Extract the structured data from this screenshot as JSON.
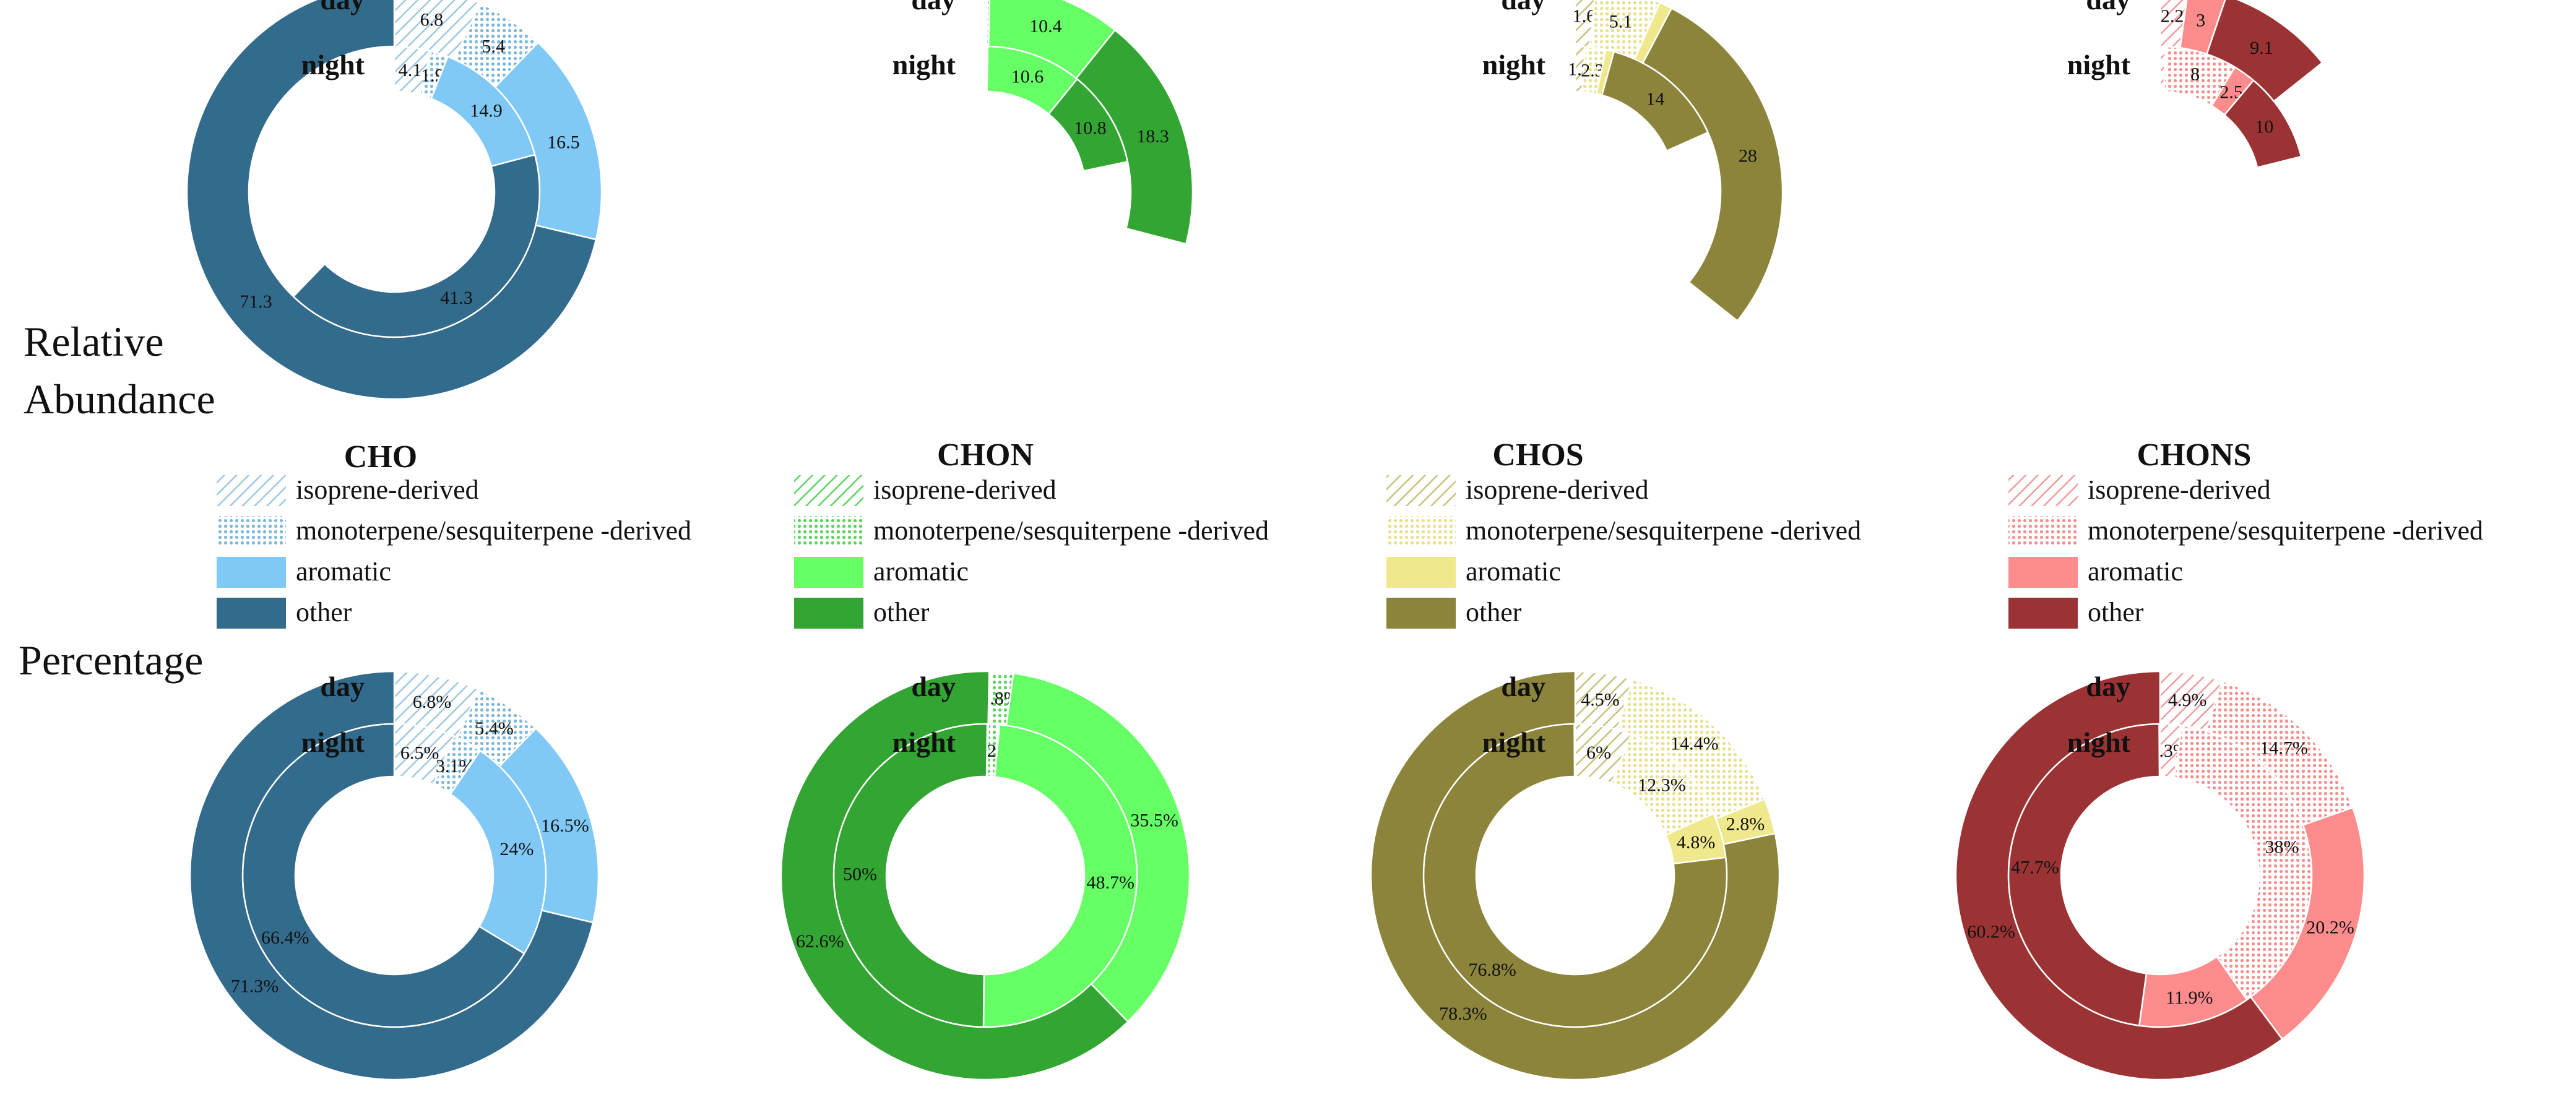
{
  "row_labels": {
    "relative_line1": "Relative",
    "relative_line2": "Abundance",
    "percentage": "Percentage"
  },
  "ring_labels": {
    "day": "day",
    "night": "night"
  },
  "legend_items": [
    "isoprene-derived",
    "monoterpene/sesquiterpene -derived",
    "aromatic",
    "other"
  ],
  "chart_data": [
    {
      "type": "pie",
      "subtype": "nested-donut",
      "metric": "Relative Abundance",
      "group": "CHO",
      "categories": [
        "isoprene-derived",
        "monoterpene/sesquiterpene -derived",
        "aromatic",
        "other"
      ],
      "series": [
        {
          "name": "day",
          "values": [
            6.8,
            5.4,
            16.5,
            71.3
          ],
          "labels": [
            "6.8",
            "5.4",
            "16.5",
            "71.3"
          ]
        },
        {
          "name": "night",
          "values": [
            4.1,
            1.9,
            14.9,
            41.3
          ],
          "labels": [
            "4.1",
            "1.9",
            "14.9",
            "41.3"
          ]
        }
      ],
      "colors": {
        "isoprene": "#9dc7e2",
        "mono": "#7db7db",
        "aromatic": "#80c8f5",
        "other": "#336b8c"
      }
    },
    {
      "type": "pie",
      "subtype": "nested-donut",
      "metric": "Relative Abundance",
      "group": "CHON",
      "categories": [
        "isoprene-derived",
        "monoterpene/sesquiterpene -derived",
        "aromatic",
        "other"
      ],
      "series": [
        {
          "name": "day",
          "values": [
            0.15,
            0.2,
            10.4,
            18.3
          ],
          "labels": [
            "",
            "",
            "10.4",
            "18.3"
          ]
        },
        {
          "name": "night",
          "values": [
            0.12,
            0.15,
            10.6,
            10.8
          ],
          "labels": [
            "",
            "",
            "10.6",
            "10.8"
          ]
        }
      ],
      "colors": {
        "isoprene": "#5ed35e",
        "mono": "#5ed35e",
        "aromatic": "#66ff66",
        "other": "#33a533"
      }
    },
    {
      "type": "pie",
      "subtype": "nested-donut",
      "metric": "Relative Abundance",
      "group": "CHOS",
      "categories": [
        "isoprene-derived",
        "monoterpene/sesquiterpene -derived",
        "aromatic",
        "other"
      ],
      "series": [
        {
          "name": "day",
          "values": [
            1.6,
            5.1,
            1.0,
            28
          ],
          "labels": [
            "1.6",
            "5.1",
            "",
            "28"
          ]
        },
        {
          "name": "night",
          "values": [
            1.1,
            2.3,
            0.9,
            14
          ],
          "labels": [
            "1.1",
            "2.3",
            "",
            "14"
          ]
        }
      ],
      "colors": {
        "isoprene": "#c9c07a",
        "mono": "#e8e08c",
        "aromatic": "#f0e88c",
        "other": "#8b843a"
      }
    },
    {
      "type": "pie",
      "subtype": "nested-donut",
      "metric": "Relative Abundance",
      "group": "CHONS",
      "categories": [
        "isoprene-derived",
        "monoterpene/sesquiterpene -derived",
        "aromatic",
        "other"
      ],
      "series": [
        {
          "name": "day",
          "values": [
            2.2,
            0,
            3,
            9.1
          ],
          "labels": [
            "2.2",
            "",
            "3",
            "9.1"
          ]
        },
        {
          "name": "night",
          "values": [
            0.6,
            8,
            2.5,
            10
          ],
          "labels": [
            "",
            "8",
            "2.5",
            "10"
          ]
        }
      ],
      "colors": {
        "isoprene": "#f09a9a",
        "mono": "#f49090",
        "aromatic": "#ff8c8c",
        "other": "#9b3335"
      }
    },
    {
      "type": "pie",
      "subtype": "nested-donut",
      "metric": "Percentage",
      "group": "CHO",
      "categories": [
        "isoprene-derived",
        "monoterpene/sesquiterpene -derived",
        "aromatic",
        "other"
      ],
      "series": [
        {
          "name": "day",
          "values": [
            6.8,
            5.4,
            16.5,
            71.3
          ],
          "labels": [
            "6.8%",
            "5.4%",
            "16.5%",
            "71.3%"
          ]
        },
        {
          "name": "night",
          "values": [
            6.5,
            3.1,
            24,
            66.4
          ],
          "labels": [
            "6.5%",
            "3.1%",
            "24%",
            "66.4%"
          ]
        }
      ],
      "colors": {
        "isoprene": "#9dc7e2",
        "mono": "#7db7db",
        "aromatic": "#80c8f5",
        "other": "#336b8c"
      }
    },
    {
      "type": "pie",
      "subtype": "nested-donut",
      "metric": "Percentage",
      "group": "CHON",
      "categories": [
        "isoprene-derived",
        "monoterpene/sesquiterpene -derived",
        "aromatic",
        "other"
      ],
      "series": [
        {
          "name": "day",
          "values": [
            0.4,
            1.8,
            35.5,
            62.6
          ],
          "labels": [
            "",
            "1.8%",
            "35.5%",
            "62.6%"
          ]
        },
        {
          "name": "night",
          "values": [
            0.3,
            1.2,
            48.7,
            50
          ],
          "labels": [
            "",
            "1.2%",
            "48.7%",
            "50%"
          ]
        }
      ],
      "colors": {
        "isoprene": "#5ed35e",
        "mono": "#5ed35e",
        "aromatic": "#66ff66",
        "other": "#33a533"
      }
    },
    {
      "type": "pie",
      "subtype": "nested-donut",
      "metric": "Percentage",
      "group": "CHOS",
      "categories": [
        "isoprene-derived",
        "monoterpene/sesquiterpene -derived",
        "aromatic",
        "other"
      ],
      "series": [
        {
          "name": "day",
          "values": [
            4.5,
            14.4,
            2.8,
            78.3
          ],
          "labels": [
            "4.5%",
            "14.4%",
            "2.8%",
            "78.3%"
          ]
        },
        {
          "name": "night",
          "values": [
            6,
            12.3,
            4.8,
            76.8
          ],
          "labels": [
            "6%",
            "12.3%",
            "4.8%",
            "76.8%"
          ]
        }
      ],
      "colors": {
        "isoprene": "#c9c07a",
        "mono": "#e8e08c",
        "aromatic": "#f0e88c",
        "other": "#8b843a"
      }
    },
    {
      "type": "pie",
      "subtype": "nested-donut",
      "metric": "Percentage",
      "group": "CHONS",
      "categories": [
        "isoprene-derived",
        "monoterpene/sesquiterpene -derived",
        "aromatic",
        "other"
      ],
      "series": [
        {
          "name": "day",
          "values": [
            4.9,
            14.7,
            20.2,
            60.2
          ],
          "labels": [
            "4.9%",
            "14.7%",
            "20.2%",
            "60.2%"
          ]
        },
        {
          "name": "night",
          "values": [
            2.3,
            38,
            11.9,
            47.7
          ],
          "labels": [
            "2.3%",
            "38%",
            "11.9%",
            "47.7%"
          ]
        }
      ],
      "colors": {
        "isoprene": "#f09a9a",
        "mono": "#f49090",
        "aromatic": "#ff8c8c",
        "other": "#9b3335"
      }
    }
  ]
}
